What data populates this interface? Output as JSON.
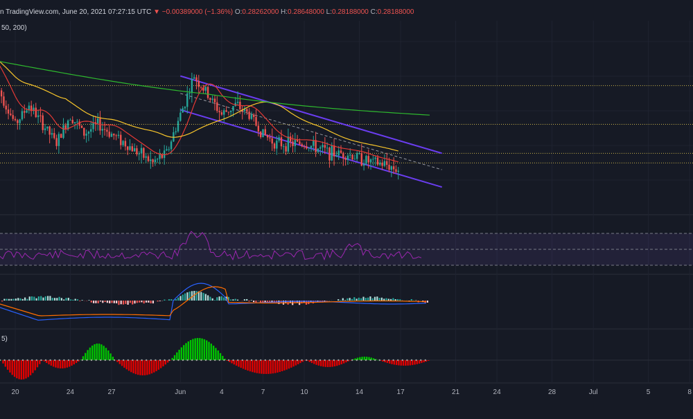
{
  "header": {
    "source": "n TradingView.com, June 20, 2021 07:27:15 UTC",
    "arrow": "▼",
    "change": "−0.00389000 (−1.36%)",
    "o_label": "O:",
    "o_value": "0.28262000",
    "h_label": "H:",
    "h_value": "0.28648000",
    "l_label": "L:",
    "l_value": "0.28188000",
    "c_label": "C:",
    "c_value": "0.28188000"
  },
  "ma_label": "50, 200)",
  "ao_label": "5)",
  "colors": {
    "background": "#161a25",
    "bull": "#26a69a",
    "bear": "#ef5350",
    "ma_red": "#e53935",
    "ma_yellow": "#f9c62b",
    "ma_green": "#2eb82e",
    "channel": "#6a3df0",
    "level": "#c8b24a",
    "rsi": "#9c27b0",
    "macd": "#2962ff",
    "signal": "#ff6d00",
    "ao_up": "#00c400",
    "ao_down": "#e00000"
  },
  "chart_data": {
    "type": "candlestick",
    "x_ticks": [
      "20",
      "24",
      "27",
      "Jun",
      "4",
      "7",
      "10",
      "14",
      "17",
      "21",
      "24",
      "28",
      "Jul",
      "5",
      "8"
    ],
    "price_levels": [
      0.37,
      0.33,
      0.3,
      0.29
    ],
    "channel": {
      "upper": {
        "start": [
          "2021-06-01",
          0.38
        ],
        "end": [
          "2021-06-20",
          0.3
        ]
      },
      "lower": {
        "start": [
          "2021-06-01",
          0.345
        ],
        "end": [
          "2021-06-20",
          0.265
        ]
      },
      "mid_dashed": {
        "start": [
          "2021-06-01",
          0.362
        ],
        "end": [
          "2021-06-20",
          0.283
        ]
      }
    },
    "series": [
      {
        "type": "candlestick",
        "ohlc_start_date": "2021-05-17",
        "ohlc_close_approx": [
          0.41,
          0.39,
          0.36,
          0.33,
          0.35,
          0.33,
          0.31,
          0.34,
          0.32,
          0.33,
          0.32,
          0.31,
          0.3,
          0.29,
          0.3,
          0.34,
          0.38,
          0.36,
          0.34,
          0.35,
          0.34,
          0.32,
          0.31,
          0.31,
          0.31,
          0.305,
          0.3,
          0.3,
          0.295,
          0.29,
          0.288,
          0.282
        ]
      },
      {
        "name": "MA 50",
        "color": "#f9c62b"
      },
      {
        "name": "MA 200",
        "color": "#2eb82e"
      }
    ],
    "rsi": {
      "upper_band": 70,
      "lower_band": 30
    },
    "ylim": [
      0.24,
      0.43
    ]
  }
}
